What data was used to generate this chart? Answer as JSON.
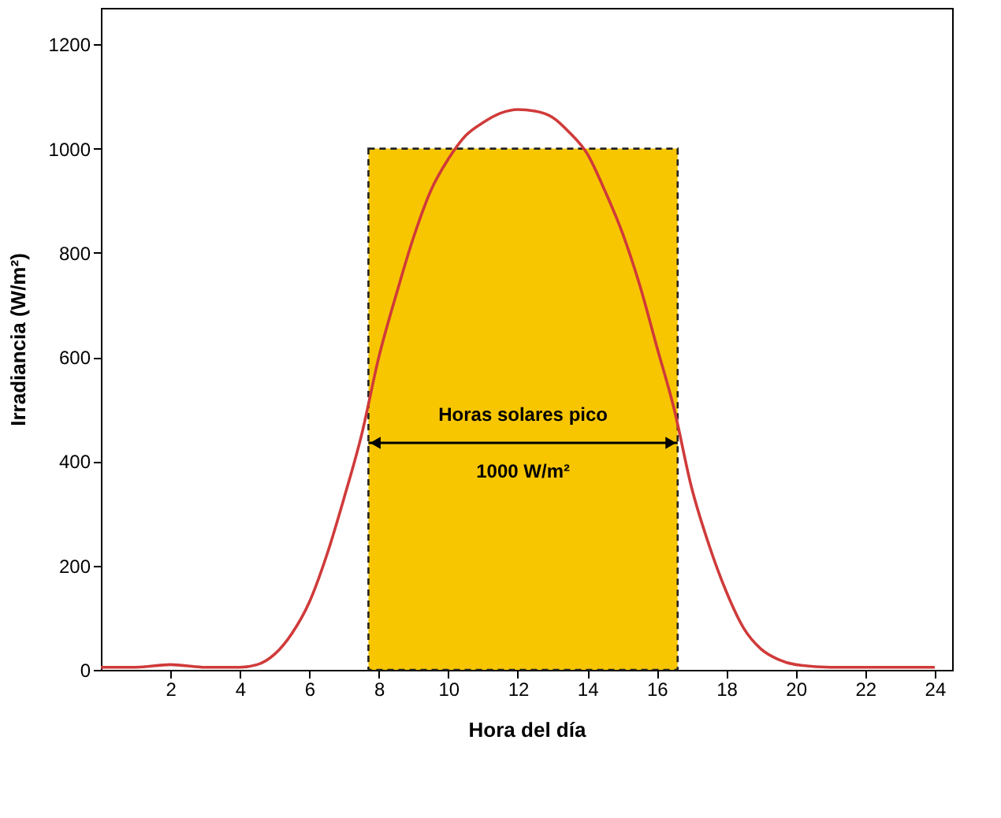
{
  "chart_data": {
    "type": "line",
    "xlabel": "Hora del día",
    "ylabel": "Irradiancia (W/m²)",
    "xlim": [
      0,
      24.5
    ],
    "xticks": [
      2,
      4,
      6,
      8,
      10,
      12,
      14,
      16,
      18,
      20,
      22,
      24
    ],
    "ylim": [
      0,
      1270
    ],
    "yticks": [
      0,
      200,
      400,
      600,
      800,
      1000,
      1200
    ],
    "grid": false,
    "series": [
      {
        "type": "area",
        "x": [
          7.7,
          16.6
        ],
        "values": [
          1000,
          1000
        ],
        "color": "#f7c600",
        "line_style": "dashed"
      },
      {
        "x": [
          0,
          1,
          2,
          3,
          4,
          4.5,
          5,
          5.5,
          6,
          6.5,
          7,
          7.5,
          8,
          8.5,
          9,
          9.5,
          10,
          10.5,
          11,
          11.5,
          12,
          12.5,
          13,
          13.5,
          14,
          14.5,
          15,
          15.5,
          16,
          16.5,
          17,
          17.5,
          18,
          18.5,
          19,
          19.5,
          20,
          21,
          22,
          23,
          24
        ],
        "values": [
          5,
          5,
          10,
          5,
          5,
          10,
          30,
          70,
          130,
          220,
          330,
          450,
          600,
          720,
          830,
          920,
          980,
          1025,
          1050,
          1068,
          1075,
          1072,
          1060,
          1030,
          990,
          920,
          840,
          740,
          620,
          500,
          350,
          240,
          150,
          80,
          40,
          20,
          10,
          5,
          5,
          5,
          5
        ],
        "color": "#d03a3a",
        "line_style": "solid"
      }
    ],
    "annotations": [
      "Horas solares pico",
      "1000 W/m²"
    ]
  }
}
